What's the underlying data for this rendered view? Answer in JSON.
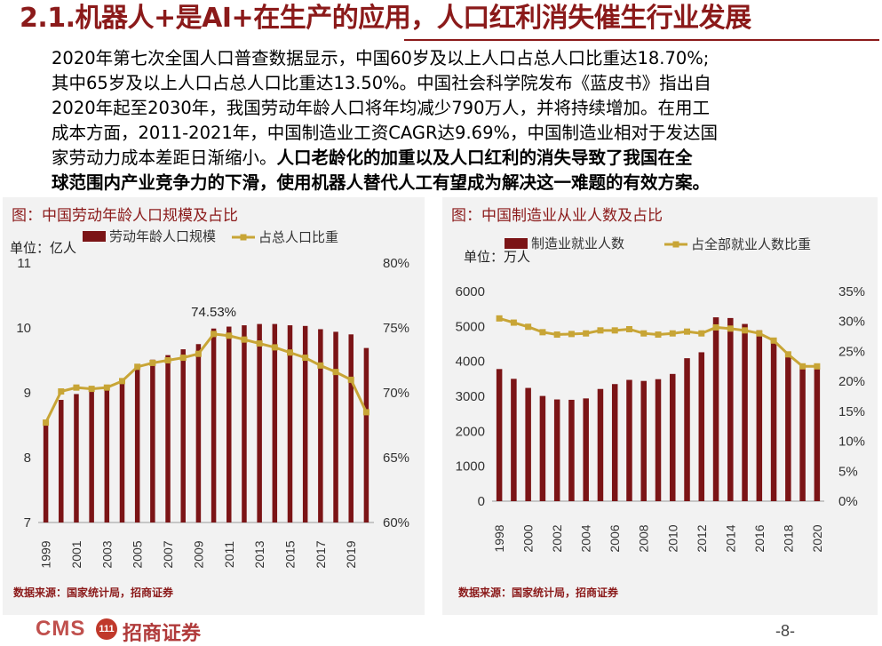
{
  "header": {
    "title": "2.1.机器人+是AI+在生产的应用，人口红利消失催生行业发展"
  },
  "intro": {
    "lines": [
      "2020年第七次全国人口普查数据显示，中国60岁及以上人口占总人口比重达18.70%;",
      "其中65岁及以上人口占总人口比重达13.50%。中国社会科学院发布《蓝皮书》指出自",
      "2020年起至2030年，我国劳动年龄人口将年均减少790万人，并将持续增加。在用工",
      "成本方面，2011-2021年，中国制造业工资CAGR达9.69%，中国制造业相对于发达国",
      "家劳动力成本差距日渐缩小。"
    ],
    "emphasis_lines": [
      "人口老龄化的加重以及人口红利的消失导致了我国在全",
      "球范围内产业竞争力的下滑，使用机器人替代人工有望成为解决这一难题的有效方案。"
    ]
  },
  "colors": {
    "bar": "#7b1416",
    "line": "#c8a536",
    "accent": "#8b1a1a",
    "panel_bg": "#f2f2f2"
  },
  "chart_data": [
    {
      "type": "bar",
      "title": "图：中国劳动年龄人口规模及占比",
      "unit_label": "单位：亿人",
      "legend_position": "top",
      "x": [
        1999,
        2000,
        2001,
        2002,
        2003,
        2004,
        2005,
        2006,
        2007,
        2008,
        2009,
        2010,
        2011,
        2012,
        2013,
        2014,
        2015,
        2016,
        2017,
        2018,
        2019,
        2020
      ],
      "x_tick_labels": [
        "1999",
        "2001",
        "2003",
        "2005",
        "2007",
        "2009",
        "2011",
        "2013",
        "2015",
        "2017",
        "2019"
      ],
      "y_left_ticks": [
        "7",
        "8",
        "9",
        "10",
        "11"
      ],
      "y_left_range": [
        7,
        11
      ],
      "y_right_ticks": [
        "60%",
        "65%",
        "70%",
        "75%",
        "80%"
      ],
      "y_right_range": [
        0.6,
        0.8
      ],
      "grid": false,
      "annotation": "74.53%",
      "series": [
        {
          "name": "劳动年龄人口规模",
          "type": "bar",
          "axis": "left",
          "values": [
            8.55,
            8.89,
            8.98,
            9.05,
            9.1,
            9.2,
            9.42,
            9.51,
            9.58,
            9.67,
            9.75,
            9.99,
            10.02,
            10.04,
            10.06,
            10.06,
            10.04,
            10.03,
            9.98,
            9.94,
            9.9,
            9.69
          ]
        },
        {
          "name": "占总人口比重",
          "type": "line",
          "axis": "right",
          "values": [
            0.677,
            0.701,
            0.704,
            0.703,
            0.704,
            0.709,
            0.72,
            0.723,
            0.725,
            0.727,
            0.73,
            0.7453,
            0.744,
            0.741,
            0.738,
            0.735,
            0.731,
            0.727,
            0.721,
            0.716,
            0.71,
            0.685
          ]
        }
      ]
    },
    {
      "type": "bar",
      "title": "图：中国制造业从业人数及占比",
      "unit_label": "单位：万人",
      "legend_position": "top",
      "x": [
        1998,
        1999,
        2000,
        2001,
        2002,
        2003,
        2004,
        2005,
        2006,
        2007,
        2008,
        2009,
        2010,
        2011,
        2012,
        2013,
        2014,
        2015,
        2016,
        2017,
        2018,
        2019,
        2020
      ],
      "x_tick_labels": [
        "1998",
        "2000",
        "2002",
        "2004",
        "2006",
        "2008",
        "2010",
        "2012",
        "2014",
        "2016",
        "2018",
        "2020"
      ],
      "y_left_ticks": [
        "0",
        "1000",
        "2000",
        "3000",
        "4000",
        "5000",
        "6000"
      ],
      "y_left_range": [
        0,
        6000
      ],
      "y_right_ticks": [
        "0%",
        "5%",
        "10%",
        "15%",
        "20%",
        "25%",
        "30%",
        "35%"
      ],
      "y_right_range": [
        0,
        0.35
      ],
      "grid": false,
      "series": [
        {
          "name": "制造业就业人数",
          "type": "bar",
          "axis": "left",
          "values": [
            3780,
            3500,
            3240,
            3010,
            2910,
            2900,
            2940,
            3210,
            3350,
            3470,
            3440,
            3490,
            3640,
            4090,
            4260,
            5260,
            5240,
            5070,
            4890,
            4640,
            4180,
            3830,
            3800
          ]
        },
        {
          "name": "占全部就业人数比重",
          "type": "line",
          "axis": "right",
          "values": [
            0.305,
            0.298,
            0.291,
            0.282,
            0.278,
            0.279,
            0.28,
            0.285,
            0.285,
            0.287,
            0.28,
            0.278,
            0.28,
            0.283,
            0.28,
            0.29,
            0.288,
            0.285,
            0.28,
            0.268,
            0.245,
            0.225,
            0.225
          ]
        }
      ]
    }
  ],
  "sources": [
    "数据来源：国家统计局，招商证券",
    "数据来源：国家统计局，招商证券"
  ],
  "footer": {
    "logo_text": "CMS",
    "logo_badge": "111",
    "logo_name": "招商证券",
    "page_number": "-8-"
  }
}
